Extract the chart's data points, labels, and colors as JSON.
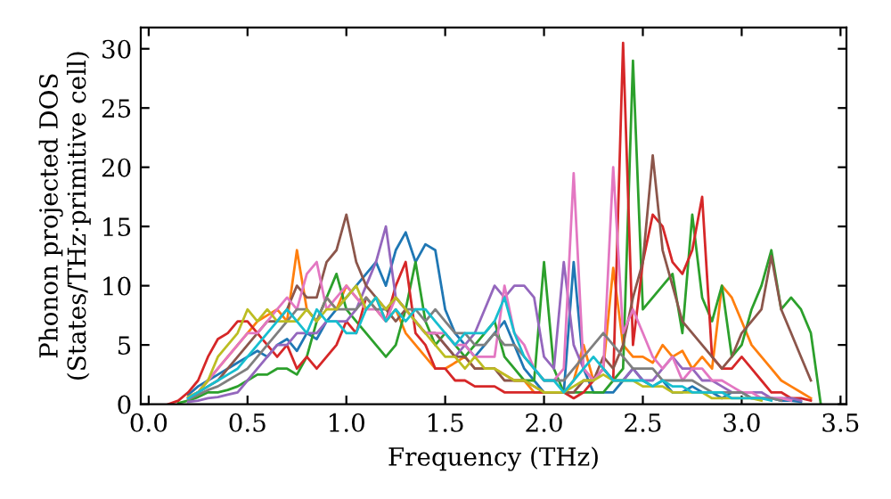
{
  "chart_data": {
    "type": "line",
    "xlabel": "Frequency (THz)",
    "ylabel": "Phonon projected DOS\n(States/THz·primitive cell)",
    "x": [
      0.1,
      0.15,
      0.2,
      0.25,
      0.3,
      0.35,
      0.4,
      0.45,
      0.5,
      0.55,
      0.6,
      0.65,
      0.7,
      0.75,
      0.8,
      0.85,
      0.9,
      0.95,
      1.0,
      1.05,
      1.1,
      1.15,
      1.2,
      1.25,
      1.3,
      1.35,
      1.4,
      1.45,
      1.5,
      1.55,
      1.6,
      1.65,
      1.7,
      1.75,
      1.8,
      1.85,
      1.9,
      1.95,
      2.0,
      2.05,
      2.1,
      2.15,
      2.2,
      2.25,
      2.3,
      2.35,
      2.4,
      2.45,
      2.5,
      2.55,
      2.6,
      2.65,
      2.7,
      2.75,
      2.8,
      2.85,
      2.9,
      2.95,
      3.0,
      3.05,
      3.1,
      3.15,
      3.2,
      3.25,
      3.3,
      3.35,
      3.4
    ],
    "series": [
      {
        "color": "#1f77b4",
        "values": [
          null,
          null,
          0.8,
          1.5,
          2,
          2.5,
          3,
          3.5,
          4,
          4.5,
          4,
          5,
          5.5,
          4.5,
          6,
          5.5,
          7,
          8,
          9,
          10,
          11,
          12,
          10,
          13,
          14.5,
          12,
          13.5,
          13,
          8,
          6,
          5,
          4,
          5,
          6,
          7,
          5,
          3,
          2,
          1,
          1,
          1,
          12,
          3,
          1,
          1,
          1,
          2,
          3,
          2,
          1.5,
          2,
          1,
          1,
          1.5,
          1,
          1,
          0.5,
          1,
          1,
          0.5,
          0.5,
          0.5,
          0.3,
          0.3,
          0.2,
          null,
          null
        ]
      },
      {
        "color": "#ff7f0e",
        "values": [
          null,
          null,
          0.6,
          1,
          2,
          3,
          4,
          5,
          6,
          7,
          7.5,
          8,
          7,
          13,
          8,
          7,
          9,
          8,
          10,
          9,
          8,
          9,
          7,
          8,
          6,
          5,
          4,
          3,
          3,
          3.5,
          4,
          3,
          3,
          3,
          2.5,
          2,
          2,
          1,
          1,
          1,
          1,
          2,
          5,
          2,
          3,
          11.5,
          5,
          4,
          4,
          3.5,
          5,
          4,
          4.5,
          3,
          4,
          3,
          10,
          9,
          7,
          5,
          4,
          3,
          2,
          1.5,
          1,
          0.5,
          null
        ]
      },
      {
        "color": "#2ca02c",
        "values": [
          null,
          0.1,
          0.3,
          0.6,
          1,
          1,
          1.2,
          1.5,
          2,
          2.5,
          2.5,
          3,
          3,
          2.5,
          4,
          7,
          9,
          11,
          8,
          7,
          6,
          5,
          4,
          5,
          8,
          12,
          7,
          5,
          6,
          5,
          4,
          5,
          6,
          7,
          4,
          3,
          2,
          2,
          12,
          3,
          1,
          1,
          1,
          1,
          1,
          2,
          3,
          29,
          8,
          9,
          10,
          11,
          6,
          16,
          9,
          7,
          10,
          4,
          5,
          8,
          10,
          13,
          8,
          9,
          8,
          6,
          0
        ]
      },
      {
        "color": "#d62728",
        "values": [
          0,
          0.3,
          1,
          2,
          4,
          5.5,
          6,
          7,
          7,
          6,
          5,
          4,
          5,
          3,
          4,
          3,
          4,
          5,
          7,
          6,
          9,
          8,
          7,
          10,
          12,
          6,
          5,
          3,
          3,
          2,
          2,
          1.5,
          1.5,
          1.5,
          1,
          1,
          1,
          1,
          1,
          1,
          1,
          0.5,
          1,
          2,
          3,
          2,
          30.5,
          5,
          12,
          16,
          15,
          12,
          11,
          13,
          17.5,
          4,
          3,
          3,
          4,
          3,
          2,
          1,
          1,
          0.5,
          0.5,
          0.3,
          null
        ]
      },
      {
        "color": "#9467bd",
        "values": [
          null,
          null,
          0.2,
          0.3,
          0.5,
          0.6,
          0.8,
          1,
          2,
          3,
          4,
          5,
          5,
          6,
          6,
          6,
          7,
          7,
          7,
          8,
          10,
          12,
          15,
          9,
          8,
          7,
          6,
          6,
          5,
          4,
          5,
          6,
          8,
          10,
          9,
          10,
          10,
          9,
          4,
          3,
          12,
          5,
          3,
          2,
          3,
          2,
          2,
          3,
          2,
          2,
          3,
          4,
          3,
          3,
          2,
          2,
          1.5,
          1,
          1,
          1,
          1,
          0.5,
          0.5,
          0.5,
          0.3,
          null,
          null
        ]
      },
      {
        "color": "#8c564b",
        "values": [
          null,
          null,
          0.5,
          1,
          1.5,
          2,
          3,
          4,
          5,
          6,
          7,
          7,
          8,
          10,
          9,
          9,
          12,
          13,
          16,
          12,
          10,
          9,
          8,
          7,
          8,
          7,
          6,
          6,
          5,
          4,
          4,
          3,
          3,
          3,
          2,
          2,
          2,
          1.5,
          1,
          1,
          1,
          1,
          2,
          2,
          4,
          3,
          5,
          9,
          12,
          21,
          13,
          10,
          7,
          6,
          5,
          4,
          3,
          4,
          6,
          7,
          8,
          12.5,
          8,
          6,
          4,
          2,
          null
        ]
      },
      {
        "color": "#e377c2",
        "values": [
          null,
          null,
          0.5,
          1,
          2,
          3,
          4,
          5,
          6,
          6,
          7,
          8,
          9,
          8,
          11,
          12,
          8,
          9,
          10,
          9,
          8,
          8,
          7,
          9,
          8,
          7,
          6,
          6,
          6,
          5,
          5,
          4,
          4,
          4,
          10,
          6,
          5,
          3,
          2,
          2,
          3,
          19.5,
          3,
          2,
          3,
          20,
          6,
          8,
          6,
          4,
          3,
          4,
          2,
          3,
          3,
          2,
          2,
          1.5,
          1,
          1,
          0.5,
          0.5,
          0.5,
          0.3,
          null,
          null,
          null
        ]
      },
      {
        "color": "#7f7f7f",
        "values": [
          null,
          null,
          0.4,
          0.8,
          1.2,
          1.5,
          2,
          2.5,
          3,
          4,
          5,
          6,
          7,
          8,
          8,
          7,
          9,
          8,
          8,
          8,
          9,
          8,
          8,
          9,
          8,
          8,
          7,
          8,
          7,
          6,
          6,
          5,
          5,
          6,
          5,
          5,
          4,
          3,
          2,
          2,
          2,
          3,
          4,
          5,
          6,
          5,
          4,
          3,
          3,
          3,
          2,
          2,
          2,
          2,
          1.5,
          1,
          1,
          1,
          1,
          0.5,
          0.5,
          0.5,
          0.3,
          null,
          null,
          null,
          null
        ]
      },
      {
        "color": "#bcbd22",
        "values": [
          null,
          null,
          0.6,
          1,
          2,
          4,
          5,
          6,
          8,
          7,
          8,
          7,
          7,
          7,
          8,
          7,
          8,
          8,
          9,
          10,
          8,
          9,
          8,
          9,
          8,
          7,
          6,
          5,
          4,
          4,
          3,
          4,
          3,
          3,
          2.5,
          2,
          2,
          1.5,
          1,
          1,
          1,
          1.5,
          2,
          2,
          2.5,
          2,
          2,
          2,
          1.5,
          1.5,
          1.5,
          1,
          1,
          1,
          1,
          0.5,
          0.5,
          0.5,
          0.5,
          0.5,
          0.3,
          null,
          null,
          null,
          null,
          null,
          null
        ]
      },
      {
        "color": "#17becf",
        "values": [
          null,
          null,
          0.5,
          1,
          1.5,
          2,
          2.5,
          3,
          4,
          5,
          6,
          7,
          8,
          7,
          6,
          8,
          7,
          7,
          6,
          6,
          8,
          9,
          7,
          8,
          7,
          8,
          8,
          7,
          6,
          5,
          6,
          6,
          6,
          7,
          9,
          6,
          4,
          3,
          2,
          2,
          1,
          2,
          3,
          4,
          3,
          2,
          2,
          2,
          2,
          1.5,
          2,
          1.5,
          1.5,
          1,
          1,
          1,
          1,
          0.5,
          0.5,
          0.5,
          0.5,
          0.3,
          null,
          null,
          null,
          null,
          null
        ]
      }
    ],
    "xlim": [
      -0.04,
      3.53
    ],
    "ylim": [
      0,
      31.8
    ],
    "xticks": [
      {
        "value": 0,
        "label": "0.0"
      },
      {
        "value": 0.5,
        "label": "0.5"
      },
      {
        "value": 1,
        "label": "1.0"
      },
      {
        "value": 1.5,
        "label": "1.5"
      },
      {
        "value": 2,
        "label": "2.0"
      },
      {
        "value": 2.5,
        "label": "2.5"
      },
      {
        "value": 3,
        "label": "3.0"
      },
      {
        "value": 3.5,
        "label": "3.5"
      }
    ],
    "yticks": [
      0,
      5,
      10,
      15,
      20,
      25,
      30
    ],
    "grid": false,
    "marker": "none",
    "line_style": "solid"
  }
}
